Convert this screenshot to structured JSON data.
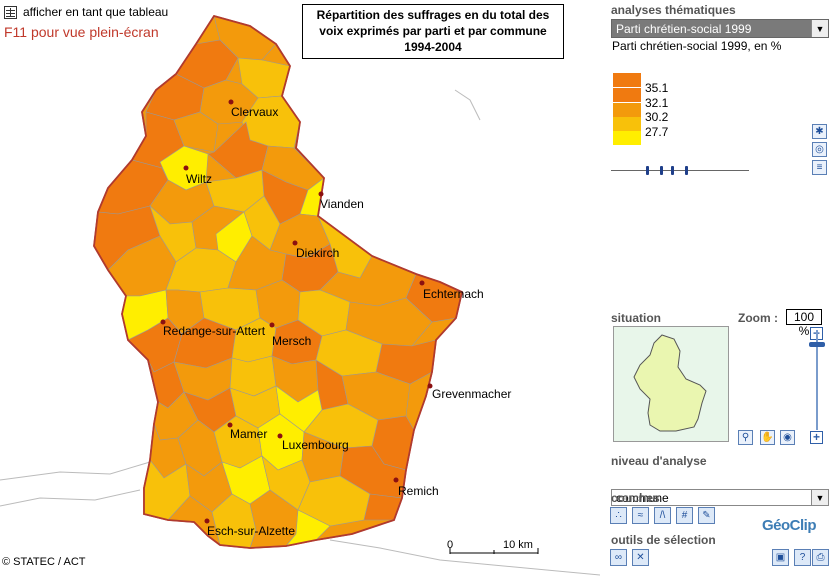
{
  "header": {
    "table_link": "afficher en tant que tableau",
    "fullscreen_hint": "F11 pour vue plein-écran"
  },
  "map": {
    "title": "Répartition des suffrages en du total des voix exprimés par parti et par commune 1994-2004",
    "copyright": "© STATEC / ACT",
    "scale": {
      "start": "0",
      "end": "10 km"
    },
    "cities": [
      {
        "name": "Clervaux"
      },
      {
        "name": "Wiltz"
      },
      {
        "name": "Vianden"
      },
      {
        "name": "Diekirch"
      },
      {
        "name": "Echternach"
      },
      {
        "name": "Redange-sur-Attert"
      },
      {
        "name": "Mersch"
      },
      {
        "name": "Grevenmacher"
      },
      {
        "name": "Mamer"
      },
      {
        "name": "Luxembourg"
      },
      {
        "name": "Remich"
      },
      {
        "name": "Esch-sur-Alzette"
      }
    ],
    "colors": {
      "c1": "#F07A10",
      "c2": "#F39A0C",
      "c3": "#F8C10A",
      "c4": "#FFEE00",
      "border": "#B03A2E"
    }
  },
  "panel": {
    "analyses_title": "analyses thématiques",
    "selected_analysis": "Parti chrétien-social 1999",
    "indicator_label": "Parti chrétien-social 1999, en %",
    "legend": [
      {
        "value": "35.1",
        "color": "#F07A10"
      },
      {
        "value": "32.1",
        "color": "#F39A0C"
      },
      {
        "value": "30.2",
        "color": "#F8C10A"
      },
      {
        "value": "27.7",
        "color": "#FFEE00"
      }
    ],
    "situation_title": "situation",
    "zoom_label": "Zoom :",
    "zoom_value": "100 %",
    "niveau_title": "niveau d'analyse",
    "niveau_value": "commune",
    "couches_title": "couches",
    "outils_title": "outils de sélection",
    "logo_text": "GéoClip"
  }
}
